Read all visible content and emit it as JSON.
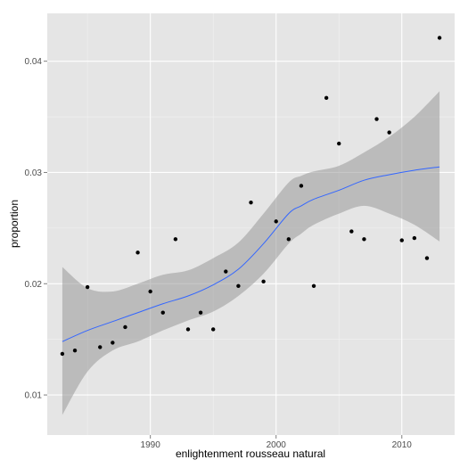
{
  "chart_data": {
    "type": "scatter",
    "title": "",
    "xlabel": "enlightenment rousseau natural",
    "ylabel": "proportion",
    "xlim": [
      1981.8,
      2014.2
    ],
    "ylim": [
      0.0064,
      0.0443
    ],
    "x_ticks": [
      1990,
      2000,
      2010
    ],
    "x_tick_labels": [
      "1990",
      "2000",
      "2010"
    ],
    "y_ticks": [
      0.01,
      0.02,
      0.03,
      0.04
    ],
    "y_tick_labels": [
      "0.01",
      "0.02",
      "0.03",
      "0.04"
    ],
    "grid": true,
    "legend": "none",
    "points": [
      {
        "x": 1983,
        "y": 0.0137
      },
      {
        "x": 1984,
        "y": 0.014
      },
      {
        "x": 1985,
        "y": 0.0197
      },
      {
        "x": 1986,
        "y": 0.0143
      },
      {
        "x": 1987,
        "y": 0.0147
      },
      {
        "x": 1988,
        "y": 0.0161
      },
      {
        "x": 1989,
        "y": 0.0228
      },
      {
        "x": 1990,
        "y": 0.0193
      },
      {
        "x": 1991,
        "y": 0.0174
      },
      {
        "x": 1992,
        "y": 0.024
      },
      {
        "x": 1993,
        "y": 0.0159
      },
      {
        "x": 1994,
        "y": 0.0174
      },
      {
        "x": 1995,
        "y": 0.0159
      },
      {
        "x": 1996,
        "y": 0.0211
      },
      {
        "x": 1997,
        "y": 0.0198
      },
      {
        "x": 1998,
        "y": 0.0273
      },
      {
        "x": 1999,
        "y": 0.0202
      },
      {
        "x": 2000,
        "y": 0.0256
      },
      {
        "x": 2001,
        "y": 0.024
      },
      {
        "x": 2002,
        "y": 0.0288
      },
      {
        "x": 2003,
        "y": 0.0198
      },
      {
        "x": 2004,
        "y": 0.0367
      },
      {
        "x": 2005,
        "y": 0.0326
      },
      {
        "x": 2006,
        "y": 0.0247
      },
      {
        "x": 2007,
        "y": 0.024
      },
      {
        "x": 2008,
        "y": 0.0348
      },
      {
        "x": 2009,
        "y": 0.0336
      },
      {
        "x": 2010,
        "y": 0.0239
      },
      {
        "x": 2011,
        "y": 0.0241
      },
      {
        "x": 2012,
        "y": 0.0223
      },
      {
        "x": 2013,
        "y": 0.0421
      }
    ],
    "smooth": {
      "x": [
        1983,
        1985,
        1987,
        1989,
        1991,
        1993,
        1995,
        1997,
        1999,
        2001,
        2002,
        2003,
        2005,
        2007,
        2009,
        2011,
        2013
      ],
      "y": [
        0.0148,
        0.0158,
        0.0166,
        0.0174,
        0.0182,
        0.0189,
        0.0199,
        0.0213,
        0.0236,
        0.0263,
        0.027,
        0.0276,
        0.0284,
        0.0293,
        0.0298,
        0.0302,
        0.0305
      ],
      "lower": [
        0.0082,
        0.0121,
        0.014,
        0.0148,
        0.0158,
        0.0167,
        0.0175,
        0.0189,
        0.0209,
        0.0236,
        0.0245,
        0.0253,
        0.0263,
        0.027,
        0.0263,
        0.0253,
        0.0238
      ],
      "upper": [
        0.0215,
        0.0196,
        0.0193,
        0.02,
        0.0208,
        0.0212,
        0.0223,
        0.0237,
        0.0263,
        0.0291,
        0.0297,
        0.0301,
        0.0306,
        0.0318,
        0.0332,
        0.035,
        0.0373
      ]
    },
    "colors": {
      "panel": "#e5e5e5",
      "grid_major": "#ffffff",
      "grid_minor": "#f2f2f2",
      "points": "#000000",
      "line": "#3366ff",
      "ribbon": "#999999",
      "tick": "#7f7f7f"
    }
  }
}
